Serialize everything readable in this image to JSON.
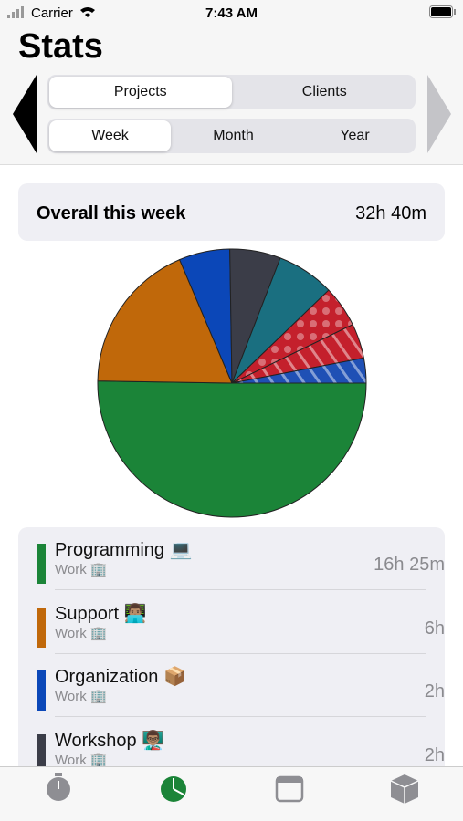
{
  "status_bar": {
    "carrier": "Carrier",
    "time": "7:43 AM"
  },
  "header": {
    "title": "Stats"
  },
  "segments": {
    "group": [
      "Projects",
      "Clients"
    ],
    "period": [
      "Week",
      "Month",
      "Year"
    ]
  },
  "summary": {
    "label": "Overall this week",
    "total": "32h 40m"
  },
  "chart_data": {
    "type": "pie",
    "values": [
      985,
      360,
      120,
      120,
      136,
      98,
      82,
      59
    ],
    "colors": [
      "#1b8438",
      "#c0680a",
      "#0b47b8",
      "#3b3d48",
      "#1a6f80",
      "#c4202c",
      "#c4202c",
      "#1f50b5"
    ],
    "patterns": [
      "solid",
      "solid",
      "solid",
      "solid",
      "solid",
      "dots",
      "stripes",
      "stripes"
    ]
  },
  "list": {
    "items": [
      {
        "name": "Programming 💻",
        "client": "Work 🏢",
        "duration": "16h 25m",
        "color": "#1b8438"
      },
      {
        "name": "Support 👨🏽‍💻",
        "client": "Work 🏢",
        "duration": "6h",
        "color": "#c0680a"
      },
      {
        "name": "Organization 📦",
        "client": "Work 🏢",
        "duration": "2h",
        "color": "#0b47b8"
      },
      {
        "name": "Workshop 👨🏽‍🏫",
        "client": "Work 🏢",
        "duration": "2h",
        "color": "#3b3d48"
      }
    ]
  }
}
